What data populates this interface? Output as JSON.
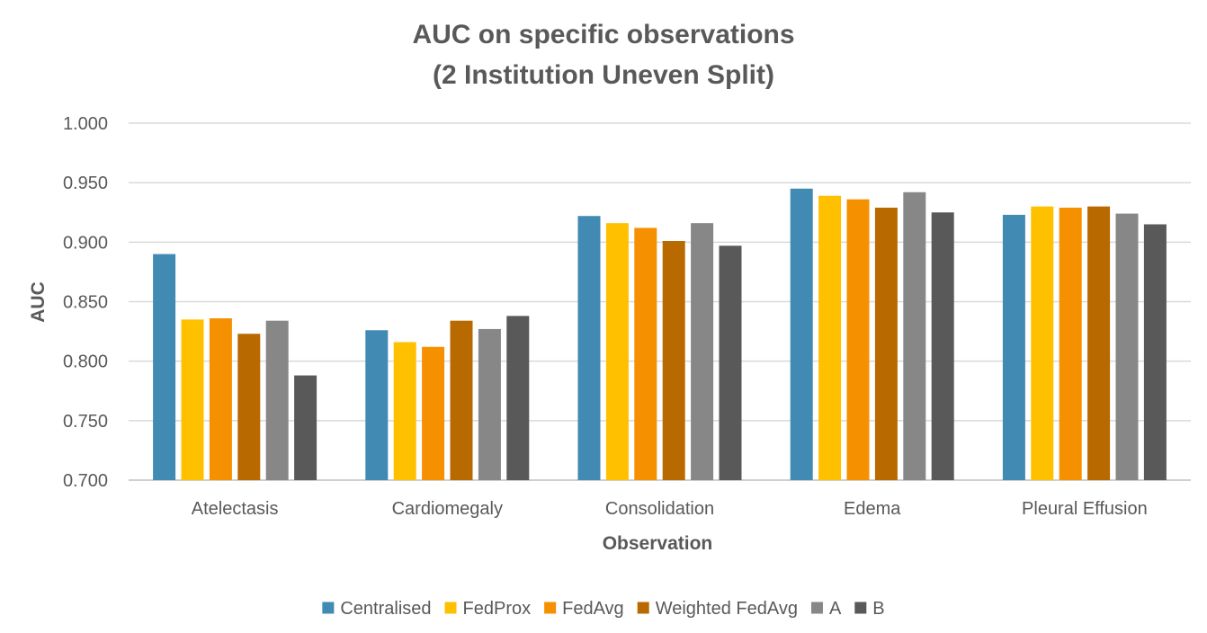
{
  "chart_data": {
    "type": "bar",
    "title": [
      "AUC on specific observations",
      "(2 Institution Uneven Split)"
    ],
    "xlabel": "Observation",
    "ylabel": "AUC",
    "ylim": [
      0.7,
      1.0
    ],
    "yticks": [
      "0.700",
      "0.750",
      "0.800",
      "0.850",
      "0.900",
      "0.950",
      "1.000"
    ],
    "grid": true,
    "legend_position": "bottom",
    "categories": [
      "Atelectasis",
      "Cardiomegaly",
      "Consolidation",
      "Edema",
      "Pleural Effusion"
    ],
    "series": [
      {
        "name": "Centralised",
        "color": "#418ab3",
        "values": [
          0.89,
          0.826,
          0.922,
          0.945,
          0.923
        ]
      },
      {
        "name": "FedProx",
        "color": "#ffc000",
        "values": [
          0.835,
          0.816,
          0.916,
          0.939,
          0.93
        ]
      },
      {
        "name": "FedAvg",
        "color": "#f59000",
        "values": [
          0.836,
          0.812,
          0.912,
          0.936,
          0.929
        ]
      },
      {
        "name": "Weighted FedAvg",
        "color": "#b86a00",
        "values": [
          0.823,
          0.834,
          0.901,
          0.929,
          0.93
        ]
      },
      {
        "name": "A",
        "color": "#878787",
        "values": [
          0.834,
          0.827,
          0.916,
          0.942,
          0.924
        ]
      },
      {
        "name": "B",
        "color": "#595959",
        "values": [
          0.788,
          0.838,
          0.897,
          0.925,
          0.915
        ]
      }
    ]
  }
}
